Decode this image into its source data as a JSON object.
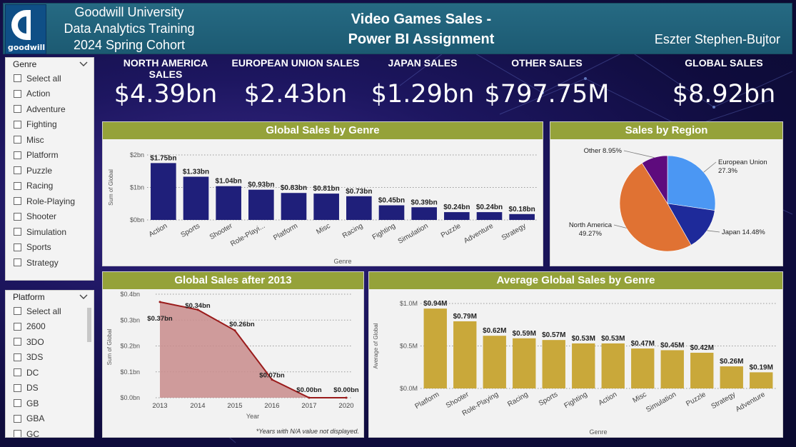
{
  "header": {
    "org_lines": [
      "Goodwill University",
      "Data Analytics Training",
      "2024 Spring Cohort"
    ],
    "logo_text": "goodwill",
    "title_line1": "Video Games Sales -",
    "title_line2": "Power BI Assignment",
    "author": "Eszter Stephen-Bujtor"
  },
  "colors": {
    "header_bg": "#1c5a72",
    "panel_title_bg": "#95a23a",
    "bar_navy": "#1f1f7a",
    "bar_gold": "#c9a83a",
    "area_fill": "#c98c8c",
    "line_red": "#9a1b1b",
    "pie_eu": "#4b97f3",
    "pie_japan": "#1e2a9a",
    "pie_na": "#e07233",
    "pie_other": "#5e0b7d"
  },
  "slicers": {
    "genre": {
      "title": "Genre",
      "items": [
        "Select all",
        "Action",
        "Adventure",
        "Fighting",
        "Misc",
        "Platform",
        "Puzzle",
        "Racing",
        "Role-Playing",
        "Shooter",
        "Simulation",
        "Sports",
        "Strategy"
      ]
    },
    "platform": {
      "title": "Platform",
      "items": [
        "Select all",
        "2600",
        "3DO",
        "3DS",
        "DC",
        "DS",
        "GB",
        "GBA",
        "GC"
      ]
    }
  },
  "kpis": [
    {
      "label": "NORTH AMERICA SALES",
      "value": "$4.39bn"
    },
    {
      "label": "EUROPEAN UNION SALES",
      "value": "$2.43bn"
    },
    {
      "label": "JAPAN SALES",
      "value": "$1.29bn"
    },
    {
      "label": "OTHER SALES",
      "value": "$797.75M"
    },
    {
      "label": "GLOBAL SALES",
      "value": "$8.92bn"
    }
  ],
  "chart_data": [
    {
      "id": "genre",
      "type": "bar",
      "title": "Global Sales by Genre",
      "xlabel": "Genre",
      "ylabel": "Sum of Global",
      "ylim": [
        0,
        2
      ],
      "yticks": [
        0,
        1,
        2
      ],
      "ytick_labels": [
        "$0bn",
        "$1bn",
        "$2bn"
      ],
      "grid": true,
      "categories": [
        "Action",
        "Sports",
        "Shooter",
        "Role-Playi...",
        "Platform",
        "Misc",
        "Racing",
        "Fighting",
        "Simulation",
        "Puzzle",
        "Adventure",
        "Strategy"
      ],
      "values": [
        1.75,
        1.33,
        1.04,
        0.93,
        0.83,
        0.81,
        0.73,
        0.45,
        0.39,
        0.24,
        0.24,
        0.18
      ],
      "data_labels": [
        "$1.75bn",
        "$1.33bn",
        "$1.04bn",
        "$0.93bn",
        "$0.83bn",
        "$0.81bn",
        "$0.73bn",
        "$0.45bn",
        "$0.39bn",
        "$0.24bn",
        "$0.24bn",
        "$0.18bn"
      ]
    },
    {
      "id": "region",
      "type": "pie",
      "title": "Sales by Region",
      "slices": [
        {
          "name": "European Union",
          "value": 27.3,
          "label_line1": "European Union",
          "label_line2": "27.3%",
          "color": "#4b97f3"
        },
        {
          "name": "Japan",
          "value": 14.48,
          "label_line1": "Japan 14.48%",
          "label_line2": "",
          "color": "#1e2a9a"
        },
        {
          "name": "North America",
          "value": 49.27,
          "label_line1": "North America",
          "label_line2": "49.27%",
          "color": "#e07233"
        },
        {
          "name": "Other",
          "value": 8.95,
          "label_line1": "Other 8.95%",
          "label_line2": "",
          "color": "#5e0b7d"
        }
      ]
    },
    {
      "id": "after2013",
      "type": "area",
      "title": "Global Sales after 2013",
      "xlabel": "Year",
      "ylabel": "Sum of Global",
      "xlim": [
        2013,
        2020
      ],
      "ylim": [
        0,
        0.4
      ],
      "xticks": [
        2013,
        2014,
        2015,
        2016,
        2017,
        2020
      ],
      "yticks": [
        0,
        0.1,
        0.2,
        0.3,
        0.4
      ],
      "ytick_labels": [
        "$0.0bn",
        "$0.1bn",
        "$0.2bn",
        "$0.3bn",
        "$0.4bn"
      ],
      "grid": true,
      "x": [
        2013,
        2014,
        2015,
        2016,
        2017,
        2020
      ],
      "values": [
        0.37,
        0.34,
        0.26,
        0.07,
        0.0,
        0.0
      ],
      "data_labels": [
        "$0.37bn",
        "$0.34bn",
        "$0.26bn",
        "$0.07bn",
        "$0.00bn",
        "$0.00bn"
      ],
      "note": "*Years with N/A value not displayed."
    },
    {
      "id": "average",
      "type": "bar",
      "title": "Average Global Sales by Genre",
      "xlabel": "Genre",
      "ylabel": "Average of Global",
      "ylim": [
        0,
        1.0
      ],
      "yticks": [
        0,
        0.5,
        1.0
      ],
      "ytick_labels": [
        "$0.0M",
        "$0.5M",
        "$1.0M"
      ],
      "grid": true,
      "categories": [
        "Platform",
        "Shooter",
        "Role-Playing",
        "Racing",
        "Sports",
        "Fighting",
        "Action",
        "Misc",
        "Simulation",
        "Puzzle",
        "Strategy",
        "Adventure"
      ],
      "values": [
        0.94,
        0.79,
        0.62,
        0.59,
        0.57,
        0.53,
        0.53,
        0.47,
        0.45,
        0.42,
        0.26,
        0.19
      ],
      "data_labels": [
        "$0.94M",
        "$0.79M",
        "$0.62M",
        "$0.59M",
        "$0.57M",
        "$0.53M",
        "$0.53M",
        "$0.47M",
        "$0.45M",
        "$0.42M",
        "$0.26M",
        "$0.19M"
      ]
    }
  ]
}
